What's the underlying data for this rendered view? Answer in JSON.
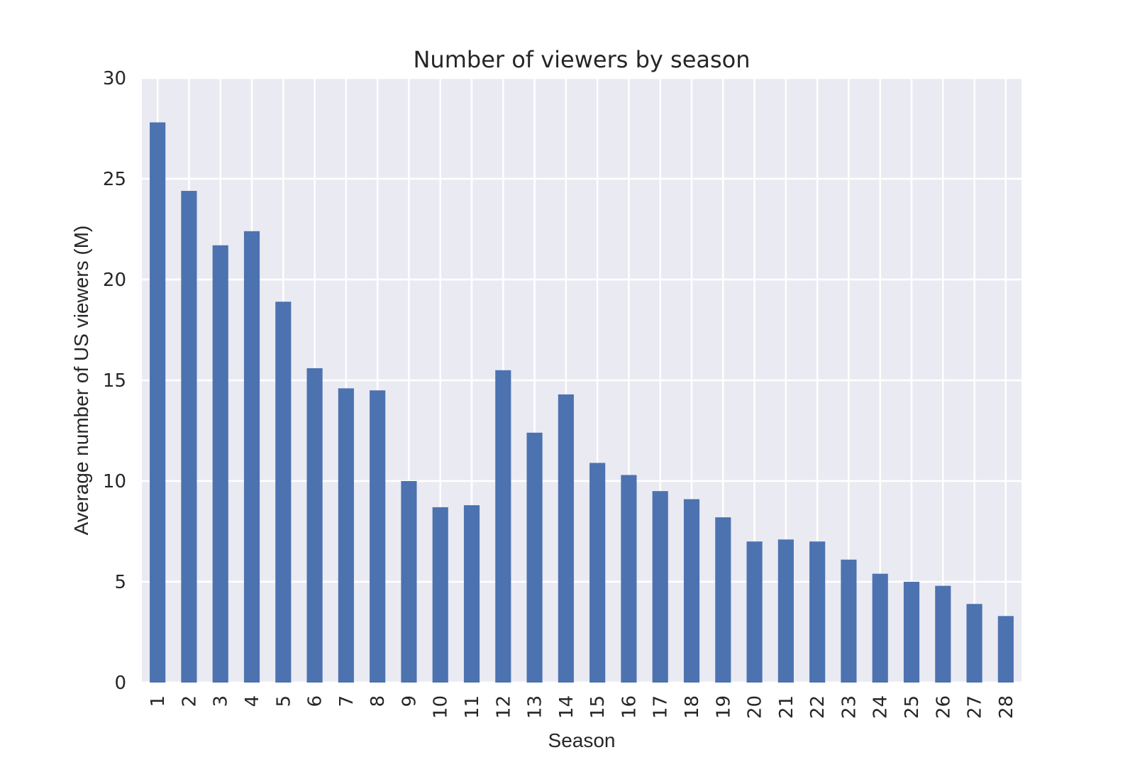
{
  "chart_data": {
    "type": "bar",
    "title": "Number of viewers by season",
    "xlabel": "Season",
    "ylabel": "Average number of US viewers (M)",
    "categories": [
      "1",
      "2",
      "3",
      "4",
      "5",
      "6",
      "7",
      "8",
      "9",
      "10",
      "11",
      "12",
      "13",
      "14",
      "15",
      "16",
      "17",
      "18",
      "19",
      "20",
      "21",
      "22",
      "23",
      "24",
      "25",
      "26",
      "27",
      "28"
    ],
    "series": [
      {
        "values": [
          27.8,
          24.4,
          21.7,
          22.4,
          18.9,
          15.6,
          14.6,
          14.5,
          10.0,
          8.7,
          8.8,
          15.5,
          12.4,
          14.3,
          10.9,
          10.3,
          9.5,
          9.1,
          8.2,
          7.0,
          7.1,
          7.0,
          6.1,
          5.4,
          5.0,
          4.8,
          3.9,
          3.3
        ]
      }
    ],
    "ylim": [
      0,
      30
    ],
    "yticks": [
      0,
      5,
      10,
      15,
      20,
      25,
      30
    ],
    "grid": true,
    "legend": "none",
    "colors": {
      "bar": "#4c72b0",
      "plot_background": "#eaeaf2",
      "grid": "#ffffff"
    }
  }
}
